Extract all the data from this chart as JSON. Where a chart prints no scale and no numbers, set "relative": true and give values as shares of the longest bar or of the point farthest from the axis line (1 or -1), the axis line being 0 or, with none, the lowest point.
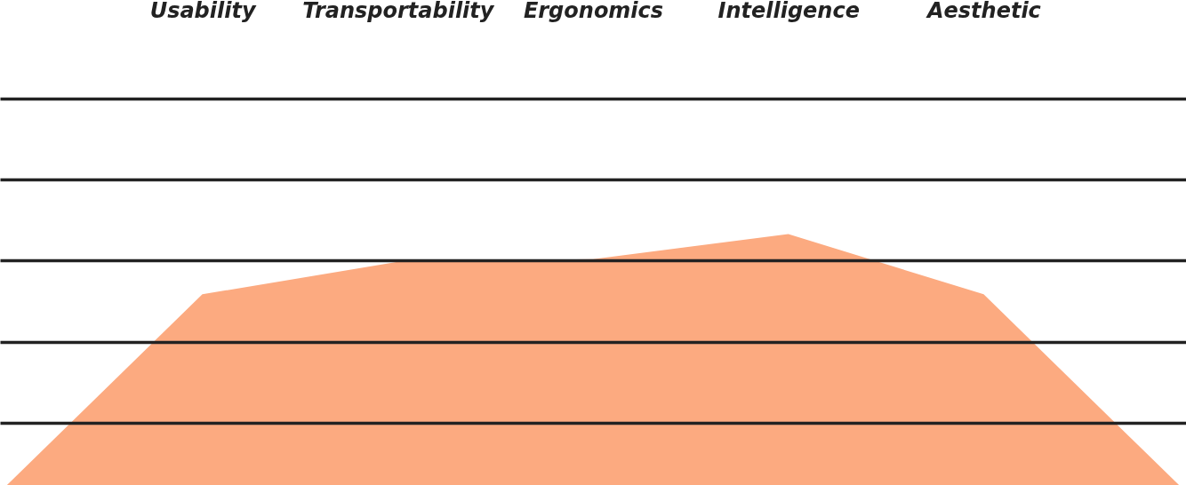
{
  "chart_data": {
    "type": "area",
    "relative": true,
    "grid": "y",
    "categories": [
      null,
      "Usability",
      "Transportability",
      "Ergonomics",
      "Intelligence",
      "Aesthetic",
      null
    ],
    "series": [
      {
        "color": "#fcaa80",
        "values": [
          0,
          0.76,
          0.89,
          0.9,
          1,
          0.76,
          0
        ]
      }
    ]
  }
}
